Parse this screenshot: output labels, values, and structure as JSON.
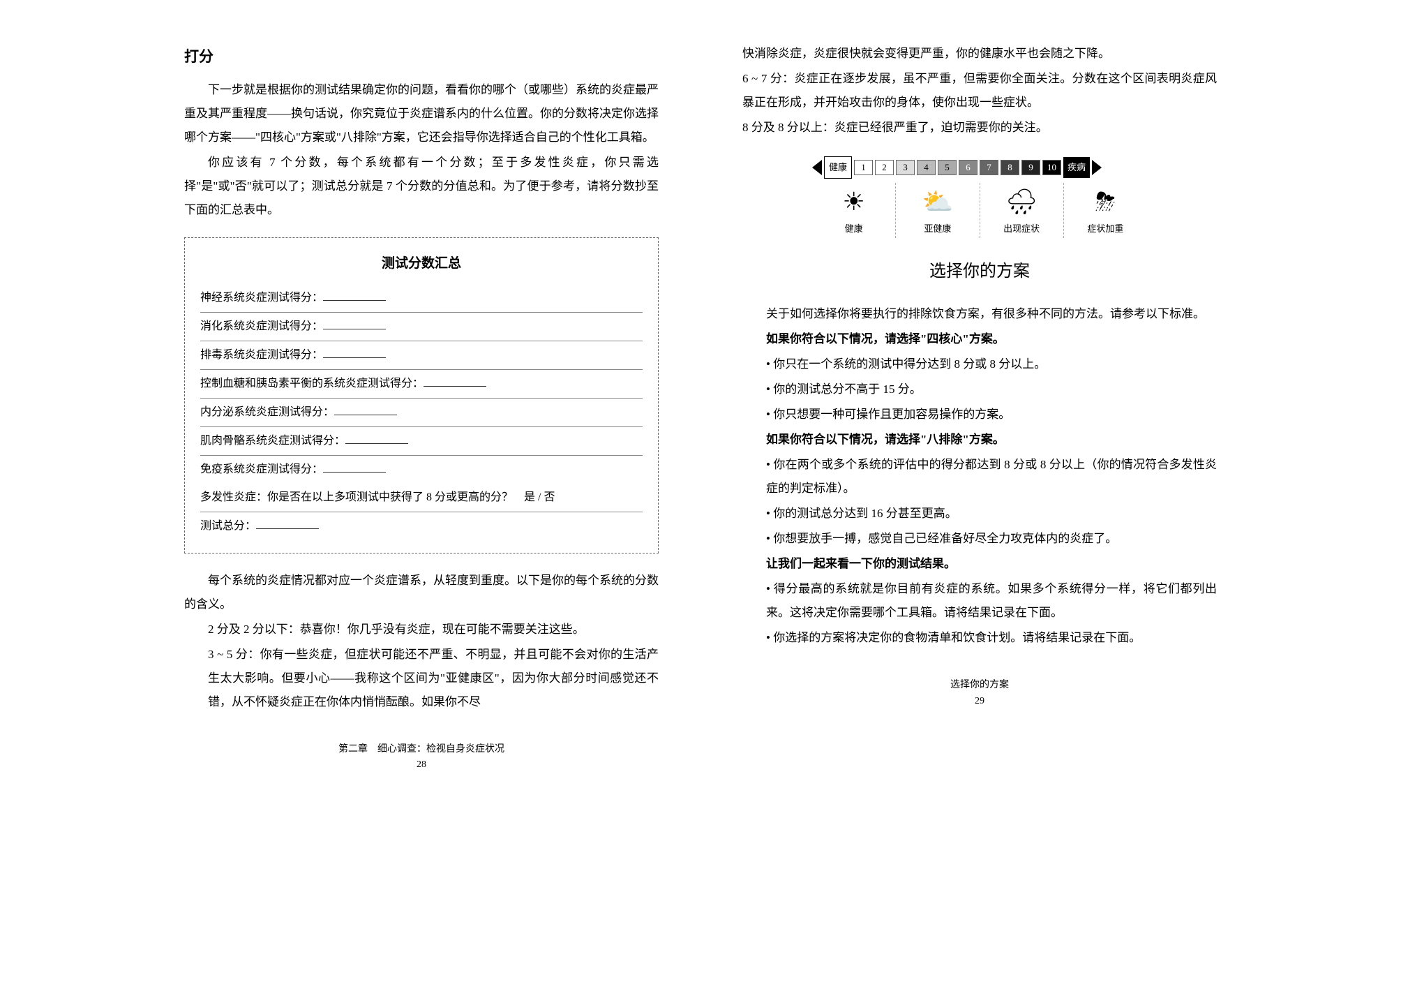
{
  "left": {
    "title": "打分",
    "para1": "下一步就是根据你的测试结果确定你的问题，看看你的哪个（或哪些）系统的炎症最严重及其严重程度——换句话说，你究竟位于炎症谱系内的什么位置。你的分数将决定你选择哪个方案——\"四核心\"方案或\"八排除\"方案，它还会指导你选择适合自己的个性化工具箱。",
    "para2": "你应该有 7 个分数，每个系统都有一个分数；至于多发性炎症，你只需选择\"是\"或\"否\"就可以了；测试总分就是 7 个分数的分值总和。为了便于参考，请将分数抄至下面的汇总表中。",
    "box_title": "测试分数汇总",
    "rows": [
      "神经系统炎症测试得分：",
      "消化系统炎症测试得分：",
      "排毒系统炎症测试得分：",
      "控制血糖和胰岛素平衡的系统炎症测试得分：",
      "内分泌系统炎症测试得分：",
      "肌肉骨骼系统炎症测试得分：",
      "免疫系统炎症测试得分："
    ],
    "row_multi": "多发性炎症：你是否在以上多项测试中获得了 8 分或更高的分？　是 / 否",
    "row_total": "测试总分：",
    "para3": "每个系统的炎症情况都对应一个炎症谱系，从轻度到重度。以下是你的每个系统的分数的含义。",
    "r1_label": "2 分及 2 分以下：",
    "r1_text": "恭喜你！你几乎没有炎症，现在可能不需要关注这些。",
    "r2_label": "3 ~ 5 分：",
    "r2_text": "你有一些炎症，但症状可能还不严重、不明显，并且可能不会对你的生活产生太大影响。但要小心——我称这个区间为\"亚健康区\"，因为你大部分时间感觉还不错，从不怀疑炎症正在你体内悄悄酝酿。如果你不尽",
    "footer1": "第二章　细心调查：检视自身炎症状况",
    "footer2": "28"
  },
  "right": {
    "cont1": "快消除炎症，炎症很快就会变得更严重，你的健康水平也会随之下降。",
    "r3_label": "6 ~ 7 分：",
    "r3_text": "炎症正在逐步发展，虽不严重，但需要你全面关注。分数在这个区间表明炎症风暴正在形成，并开始攻击你的身体，使你出现一些症状。",
    "r4_label": "8 分及 8 分以上：",
    "r4_text": "炎症已经很严重了，迫切需要你的关注。",
    "spectrum": {
      "left_label": "健康",
      "right_label": "疾病",
      "cells": [
        "1",
        "2",
        "3",
        "4",
        "5",
        "6",
        "7",
        "8",
        "9",
        "10"
      ],
      "shades": [
        "#ffffff",
        "#ffffff",
        "#dddddd",
        "#bbbbbb",
        "#aaaaaa",
        "#888888",
        "#666666",
        "#444444",
        "#222222",
        "#000000"
      ],
      "text_colors": [
        "#000",
        "#000",
        "#000",
        "#000",
        "#000",
        "#fff",
        "#fff",
        "#fff",
        "#fff",
        "#fff"
      ],
      "stages": [
        {
          "icon": "☀",
          "label": "健康"
        },
        {
          "icon": "⛅",
          "label": "亚健康"
        },
        {
          "icon": "🌧",
          "label": "出现症状"
        },
        {
          "icon": "⛈",
          "label": "症状加重"
        }
      ]
    },
    "heading": "选择你的方案",
    "para1": "关于如何选择你将要执行的排除饮食方案，有很多种不同的方法。请参考以下标准。",
    "cond1_title": "如果你符合以下情况，请选择\"四核心\"方案。",
    "cond1_items": [
      "你只在一个系统的测试中得分达到 8 分或 8 分以上。",
      "你的测试总分不高于 15 分。",
      "你只想要一种可操作且更加容易操作的方案。"
    ],
    "cond2_title": "如果你符合以下情况，请选择\"八排除\"方案。",
    "cond2_items": [
      "你在两个或多个系统的评估中的得分都达到 8 分或 8 分以上（你的情况符合多发性炎症的判定标准）。",
      "你的测试总分达到 16 分甚至更高。",
      "你想要放手一搏，感觉自己已经准备好尽全力攻克体内的炎症了。"
    ],
    "lets_see": "让我们一起来看一下你的测试结果。",
    "result_items": [
      "得分最高的系统就是你目前有炎症的系统。如果多个系统得分一样，将它们都列出来。这将决定你需要哪个工具箱。请将结果记录在下面。",
      "你选择的方案将决定你的食物清单和饮食计划。请将结果记录在下面。"
    ],
    "footer1": "选择你的方案",
    "footer2": "29"
  }
}
